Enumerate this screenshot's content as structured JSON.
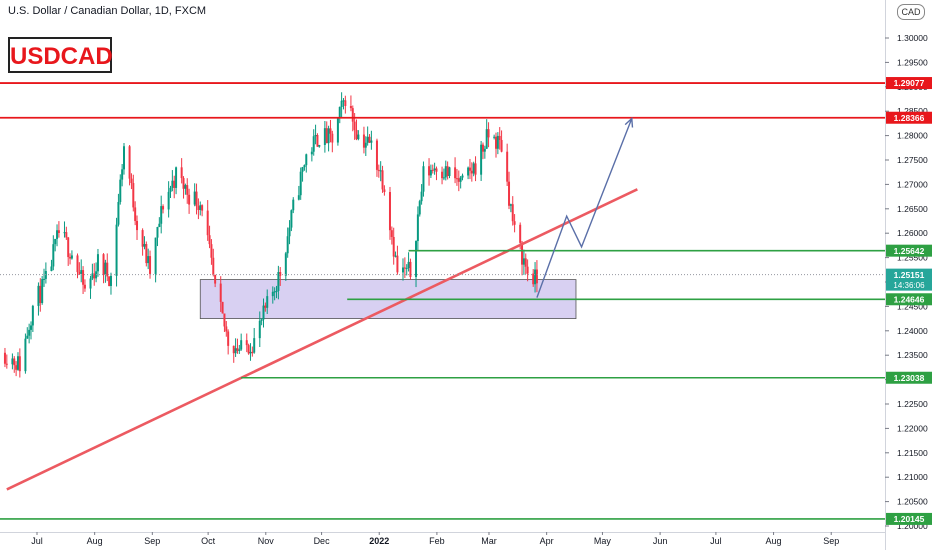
{
  "header": {
    "title": "U.S. Dollar / Canadian Dollar, 1D, FXCM"
  },
  "logo": {
    "text": "USDCAD"
  },
  "currency_badge": "CAD",
  "chart_data": {
    "type": "candlestick",
    "ylim": [
      1.2,
      1.305
    ],
    "y_ticks": [
      "1.20000",
      "1.20500",
      "1.21000",
      "1.21500",
      "1.22000",
      "1.22500",
      "1.23000",
      "1.23500",
      "1.24000",
      "1.24500",
      "1.25000",
      "1.25500",
      "1.26000",
      "1.26500",
      "1.27000",
      "1.27500",
      "1.28000",
      "1.28500",
      "1.29000",
      "1.29500",
      "1.30000"
    ],
    "x_ticks": [
      "Jul",
      "Aug",
      "Sep",
      "Oct",
      "Nov",
      "Dec",
      "2022",
      "Feb",
      "Mar",
      "Apr",
      "May",
      "Jun",
      "Jul",
      "Aug",
      "Sep"
    ],
    "colors": {
      "up": "#089981",
      "down": "#f23645",
      "resistance": "#e8171c",
      "support": "#2ea043",
      "trendline": "#ec5a61",
      "projection": "#5a6fa8",
      "zone": "#d8d0f2"
    },
    "levels": [
      {
        "label": "1.29077",
        "value": 1.29077,
        "kind": "resistance"
      },
      {
        "label": "1.28366",
        "value": 1.28366,
        "kind": "resistance"
      },
      {
        "label": "1.25642",
        "value": 1.25642,
        "kind": "support"
      },
      {
        "label": "1.24646",
        "value": 1.24646,
        "kind": "support"
      },
      {
        "label": "1.23038",
        "value": 1.23038,
        "kind": "support"
      },
      {
        "label": "1.20145",
        "value": 1.20145,
        "kind": "support"
      }
    ],
    "current_price": {
      "label": "1.25151",
      "value": 1.25151,
      "countdown": "14:36:06"
    },
    "zone": {
      "from": "2021-09-30",
      "to": "2022-04-20",
      "low": 1.2425,
      "high": 1.2505
    },
    "trendline": {
      "points": [
        {
          "date": "2021-06-18",
          "value": 1.2075
        },
        {
          "date": "2022-05-23",
          "value": 1.269
        }
      ]
    },
    "projection": [
      {
        "date": "2022-03-30",
        "value": 1.2468
      },
      {
        "date": "2022-04-15",
        "value": 1.2635
      },
      {
        "date": "2022-04-23",
        "value": 1.2572
      },
      {
        "date": "2022-05-20",
        "value": 1.2835
      }
    ],
    "closes": [
      [
        "2021-06-17",
        1.2355
      ],
      [
        "2021-06-25",
        1.233
      ],
      [
        "2021-07-02",
        1.245
      ],
      [
        "2021-07-09",
        1.25
      ],
      [
        "2021-07-16",
        1.26
      ],
      [
        "2021-07-23",
        1.256
      ],
      [
        "2021-07-30",
        1.248
      ],
      [
        "2021-08-06",
        1.254
      ],
      [
        "2021-08-13",
        1.251
      ],
      [
        "2021-08-20",
        1.278
      ],
      [
        "2021-08-27",
        1.262
      ],
      [
        "2021-09-03",
        1.252
      ],
      [
        "2021-09-10",
        1.266
      ],
      [
        "2021-09-17",
        1.272
      ],
      [
        "2021-09-24",
        1.268
      ],
      [
        "2021-10-01",
        1.266
      ],
      [
        "2021-10-08",
        1.248
      ],
      [
        "2021-10-15",
        1.238
      ],
      [
        "2021-10-22",
        1.236
      ],
      [
        "2021-10-29",
        1.238
      ],
      [
        "2021-11-05",
        1.245
      ],
      [
        "2021-11-12",
        1.252
      ],
      [
        "2021-11-19",
        1.265
      ],
      [
        "2021-11-26",
        1.276
      ],
      [
        "2021-12-03",
        1.28
      ],
      [
        "2021-12-10",
        1.279
      ],
      [
        "2021-12-17",
        1.288
      ],
      [
        "2021-12-24",
        1.28
      ],
      [
        "2021-12-31",
        1.278
      ],
      [
        "2022-01-07",
        1.27
      ],
      [
        "2022-01-14",
        1.252
      ],
      [
        "2022-01-21",
        1.252
      ],
      [
        "2022-01-28",
        1.272
      ],
      [
        "2022-02-04",
        1.274
      ],
      [
        "2022-02-11",
        1.272
      ],
      [
        "2022-02-18",
        1.27
      ],
      [
        "2022-02-25",
        1.274
      ],
      [
        "2022-03-04",
        1.28
      ],
      [
        "2022-03-11",
        1.278
      ],
      [
        "2022-03-18",
        1.26
      ],
      [
        "2022-03-25",
        1.252
      ],
      [
        "2022-03-30",
        1.25
      ]
    ]
  }
}
